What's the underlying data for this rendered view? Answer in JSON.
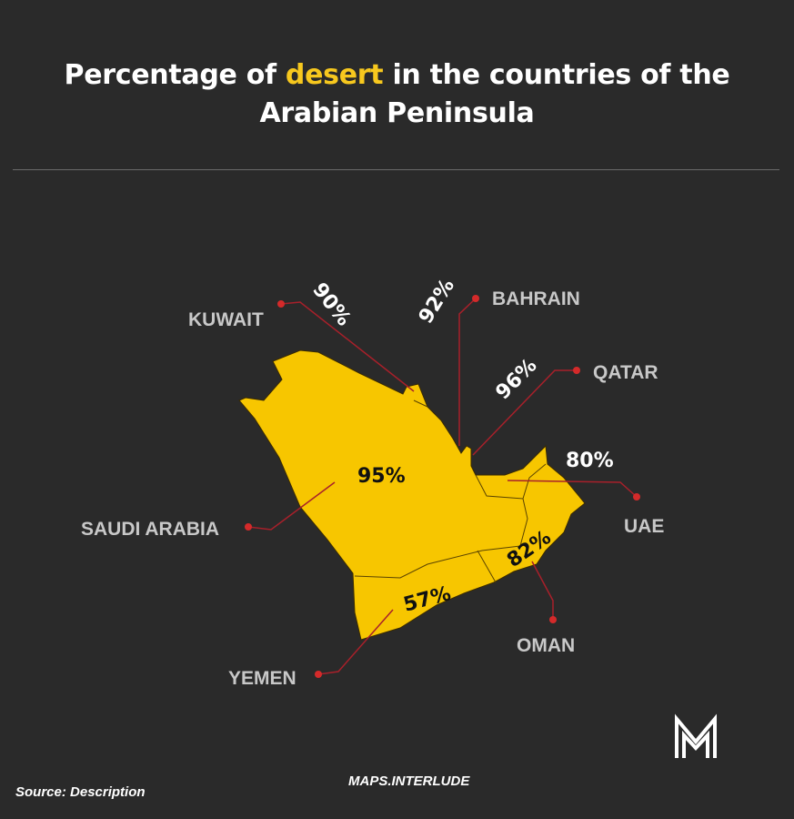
{
  "title": {
    "before": "Percentage of ",
    "highlight": "desert",
    "after": " in the countries of the",
    "line2": "Arabian Peninsula"
  },
  "colors": {
    "background": "#2a2a2a",
    "land": "#f7c600",
    "highlight": "#f7c81e",
    "leader": "#a8202a",
    "dot": "#d42a2a"
  },
  "countries": [
    {
      "name": "KUWAIT",
      "desert_percent": "90%"
    },
    {
      "name": "BAHRAIN",
      "desert_percent": "92%"
    },
    {
      "name": "QATAR",
      "desert_percent": "96%"
    },
    {
      "name": "UAE",
      "desert_percent": "80%"
    },
    {
      "name": "SAUDI ARABIA",
      "desert_percent": "95%"
    },
    {
      "name": "OMAN",
      "desert_percent": "82%"
    },
    {
      "name": "YEMEN",
      "desert_percent": "57%"
    }
  ],
  "footer": {
    "source": "Source: Description",
    "brand": "MAPS.INTERLUDE",
    "logo_text": "M"
  }
}
